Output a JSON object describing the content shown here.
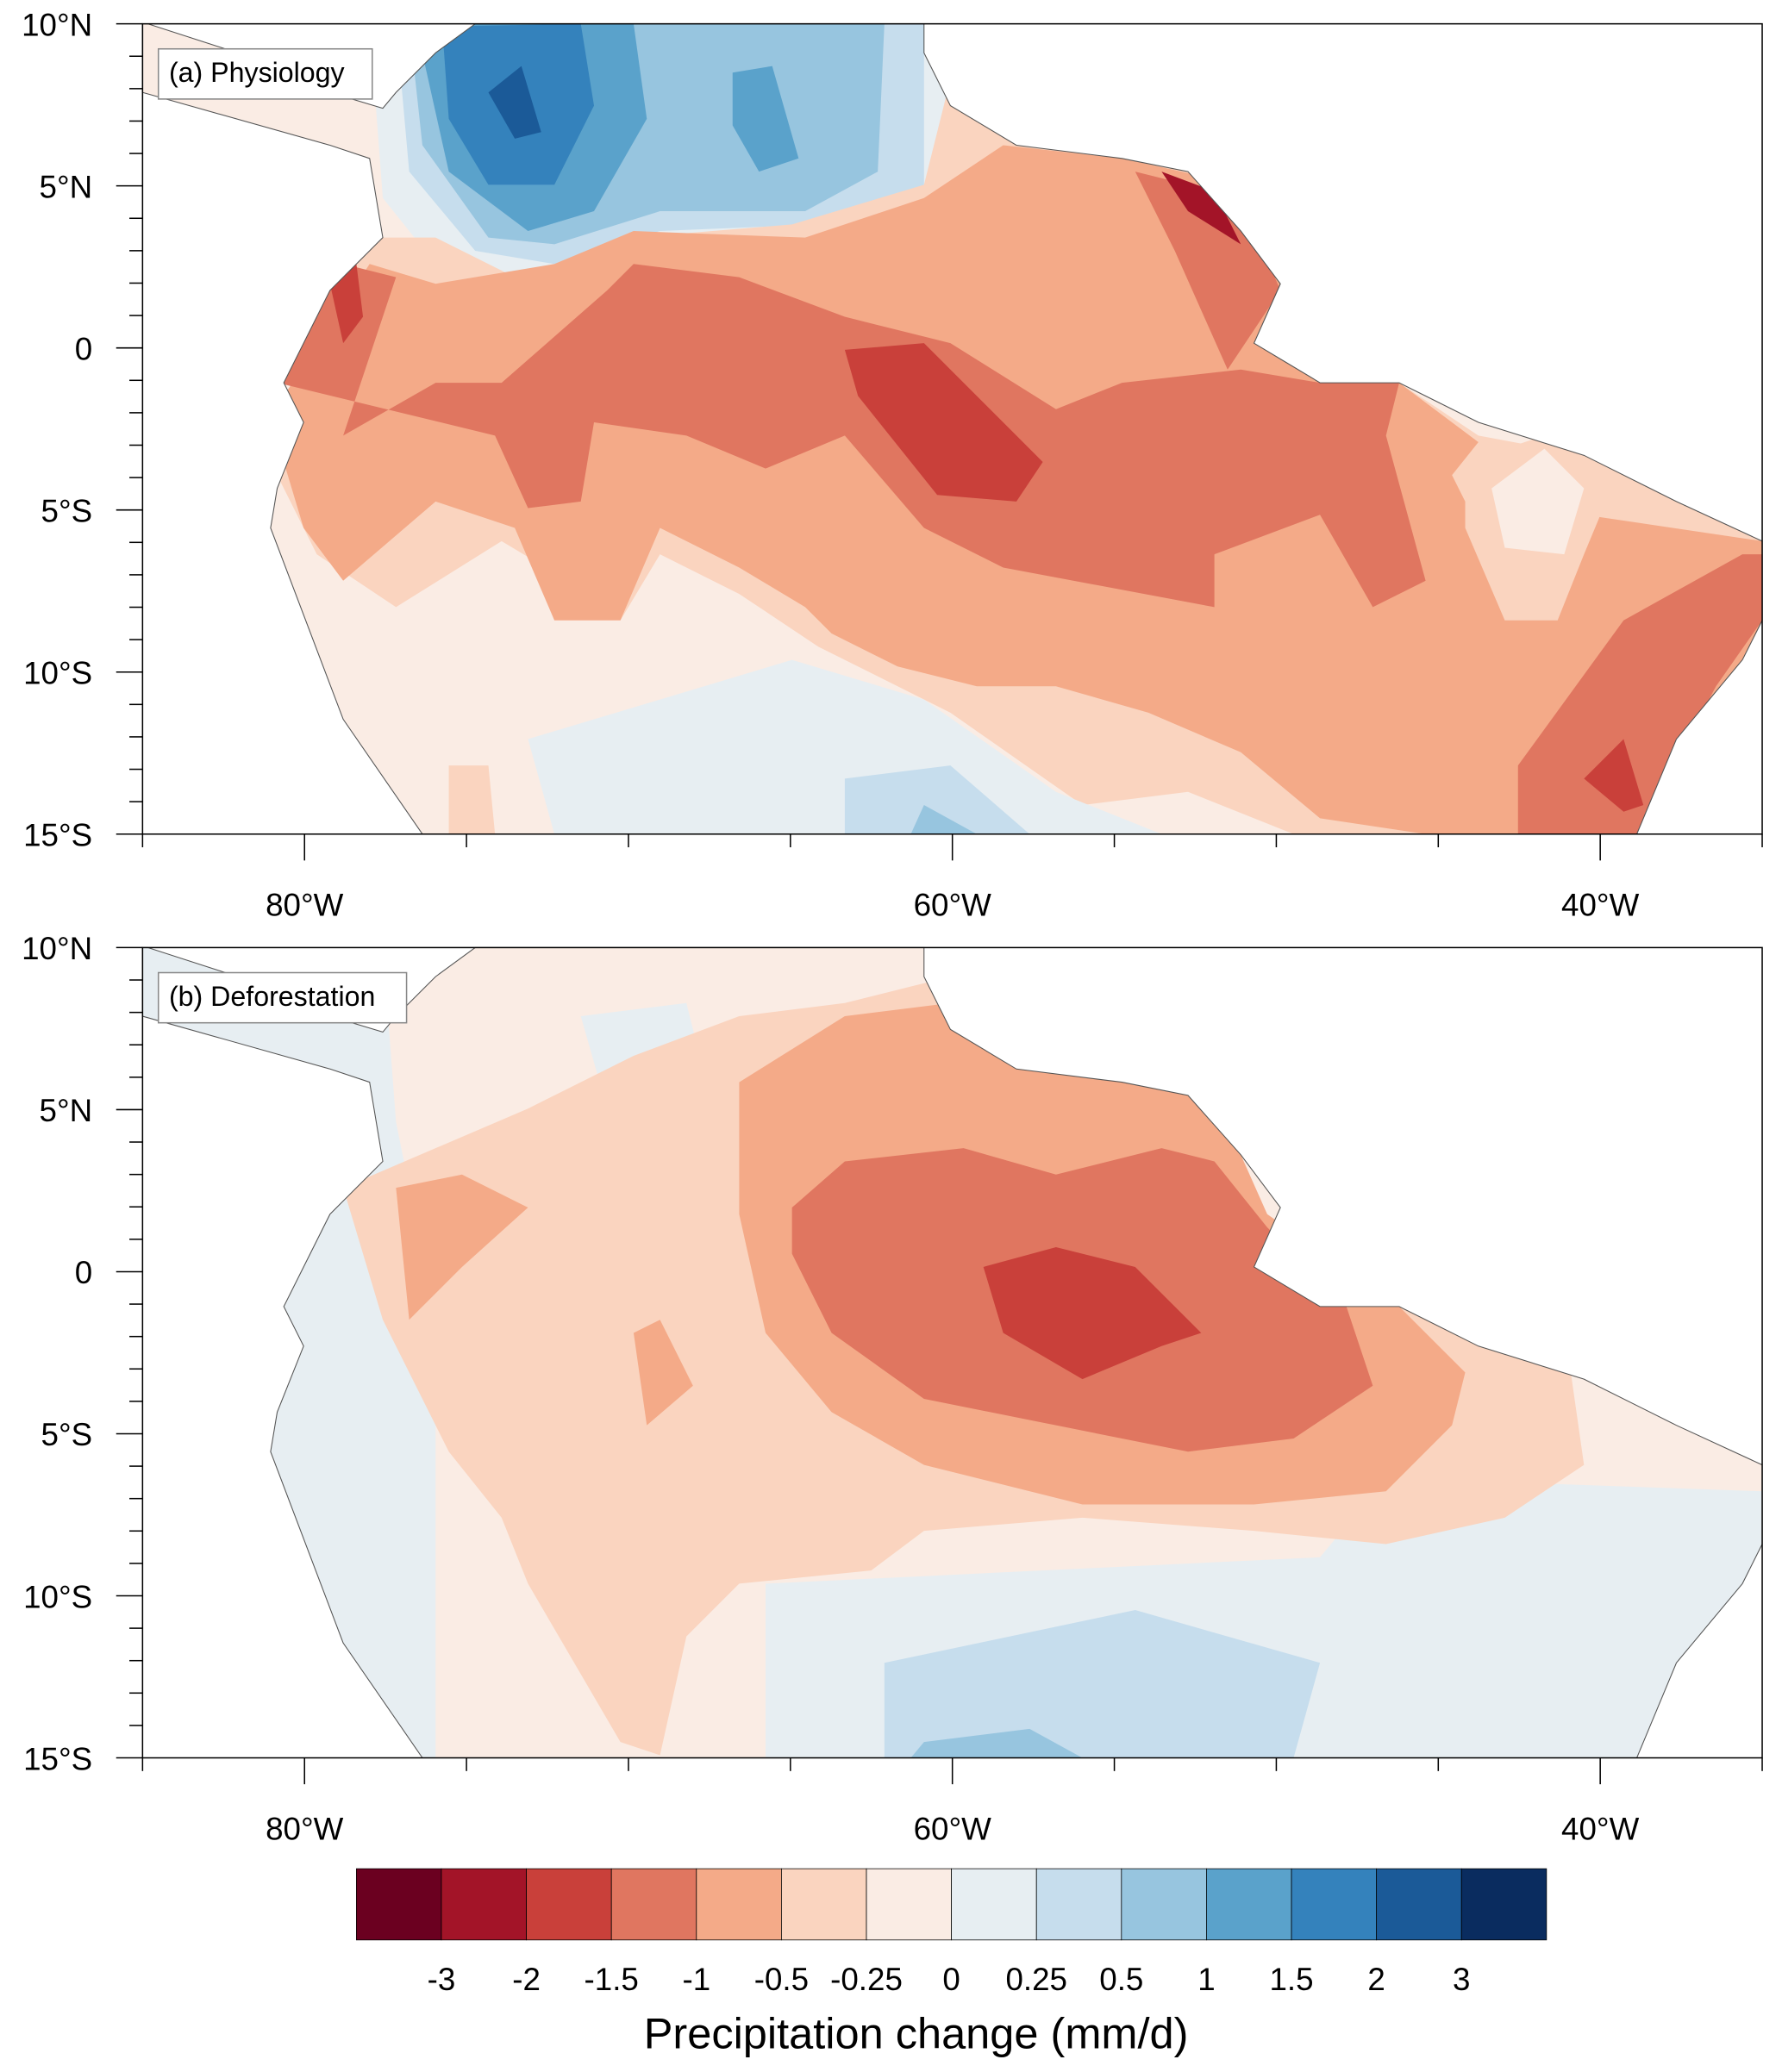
{
  "panels": [
    {
      "title": "(a) Physiology"
    },
    {
      "title": "(b) Deforestation"
    }
  ],
  "lat_labels": [
    "10°N",
    "5°N",
    "0",
    "5°S",
    "10°S",
    "15°S"
  ],
  "lon_labels": [
    "80°W",
    "60°W",
    "40°W"
  ],
  "colorbar": {
    "title": "Precipitation change (mm/d)",
    "labels": [
      "-3",
      "-2",
      "-1.5",
      "-1",
      "-0.5",
      "-0.25",
      "0",
      "0.25",
      "0.5",
      "1",
      "1.5",
      "2",
      "3"
    ],
    "colors": [
      "#6b0020",
      "#a31428",
      "#c9403a",
      "#e07660",
      "#f4aa88",
      "#fad4bf",
      "#faece4",
      "#e7eef2",
      "#c6dded",
      "#97c5df",
      "#5aa2cb",
      "#3482bc",
      "#1b5a98",
      "#0a2c5f"
    ]
  },
  "chart_data": {
    "type": "heatmap",
    "title": "Precipitation change (mm/d)",
    "panels": [
      "(a) Physiology",
      "(b) Deforestation"
    ],
    "lon_range": [
      -85,
      -35
    ],
    "lat_range": [
      -15,
      10
    ],
    "levels": [
      -3,
      -2,
      -1.5,
      -1,
      -0.5,
      -0.25,
      0,
      0.25,
      0.5,
      1,
      1.5,
      2,
      3
    ]
  }
}
